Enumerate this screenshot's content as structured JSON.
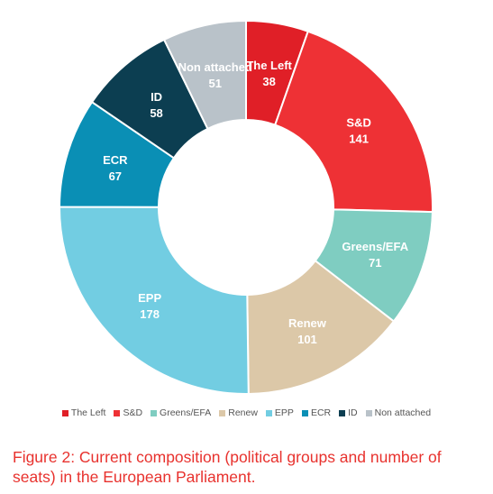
{
  "chart_data": {
    "type": "pie",
    "variant": "donut",
    "title": "",
    "legend_position": "bottom",
    "slices": [
      {
        "name": "The Left",
        "value": 38,
        "color": "#e01f27"
      },
      {
        "name": "S&D",
        "value": 141,
        "color": "#ee3135"
      },
      {
        "name": "Greens/EFA",
        "value": 71,
        "color": "#7fcdc1"
      },
      {
        "name": "Renew",
        "value": 101,
        "color": "#dcc8a8"
      },
      {
        "name": "EPP",
        "value": 178,
        "color": "#72cde2"
      },
      {
        "name": "ECR",
        "value": 67,
        "color": "#0a8fb5"
      },
      {
        "name": "ID",
        "value": 58,
        "color": "#0c3e51"
      },
      {
        "name": "Non attached",
        "value": 51,
        "color": "#b9c2c9"
      }
    ]
  },
  "caption": "Figure 2: Current composition (political groups and number of seats) in the European Parliament."
}
